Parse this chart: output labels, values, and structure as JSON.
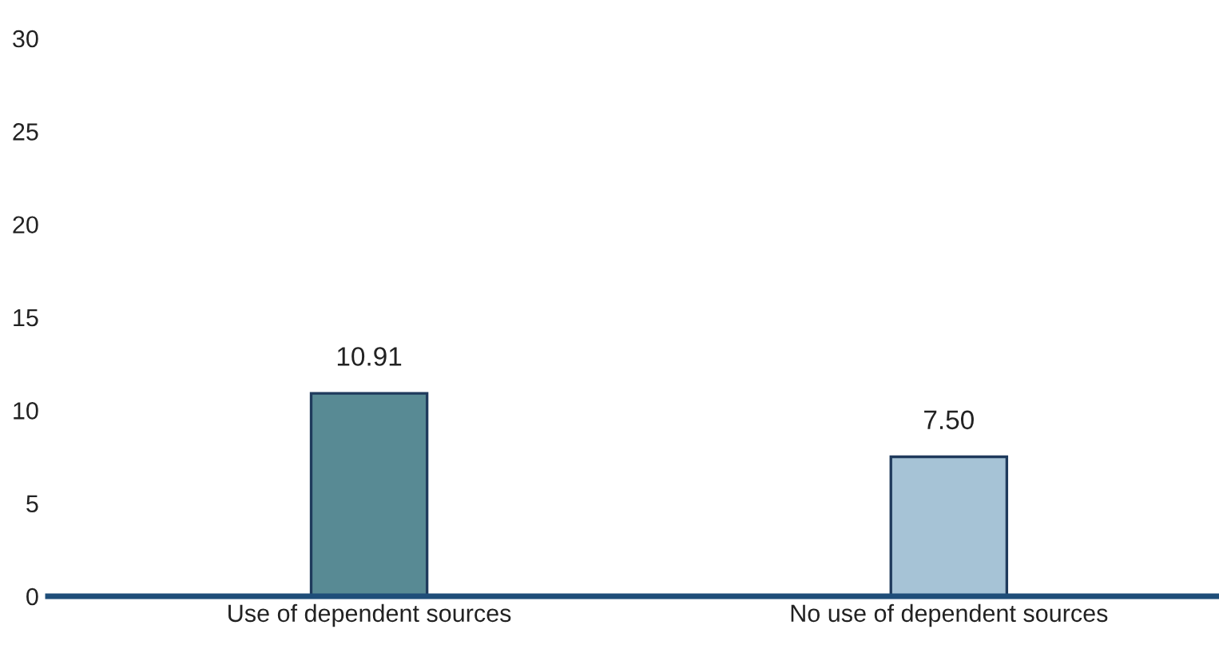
{
  "chart_data": {
    "type": "bar",
    "categories": [
      "Use of dependent sources",
      "No use of dependent sources"
    ],
    "values": [
      10.91,
      7.5
    ],
    "value_labels": [
      "10.91",
      "7.50"
    ],
    "colors": [
      "#588a94",
      "#a6c3d6"
    ],
    "ylim": [
      0,
      30
    ],
    "yticks": [
      0,
      5,
      10,
      15,
      20,
      25,
      30
    ],
    "grid": false
  }
}
